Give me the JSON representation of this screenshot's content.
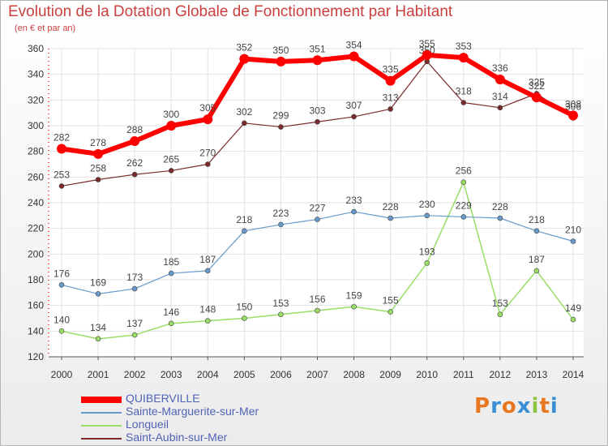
{
  "chart_data": {
    "type": "line",
    "title": "Evolution de la Dotation Globale de Fonctionnement par Habitant",
    "subtitle": "(en € et par an)",
    "x": [
      "2000",
      "2001",
      "2002",
      "2003",
      "2004",
      "2005",
      "2006",
      "2007",
      "2008",
      "2009",
      "2010",
      "2011",
      "2012",
      "2013",
      "2014"
    ],
    "ylim": [
      120,
      360
    ],
    "yticks": [
      120,
      140,
      160,
      180,
      200,
      220,
      240,
      260,
      280,
      300,
      320,
      340,
      360
    ],
    "grid": true,
    "legend_position": "bottom-left",
    "series": [
      {
        "name": "QUIBERVILLE",
        "color": "#ff0000",
        "values": [
          282,
          278,
          288,
          300,
          305,
          352,
          350,
          351,
          354,
          335,
          355,
          353,
          336,
          322,
          308
        ]
      },
      {
        "name": "Sainte-Marguerite-sur-Mer",
        "color": "#6699cc",
        "values": [
          176,
          169,
          173,
          185,
          187,
          218,
          223,
          227,
          233,
          228,
          230,
          229,
          228,
          218,
          210
        ]
      },
      {
        "name": "Longueil",
        "color": "#99dd66",
        "values": [
          140,
          134,
          137,
          146,
          148,
          150,
          153,
          156,
          159,
          155,
          193,
          256,
          153,
          187,
          149
        ]
      },
      {
        "name": "Saint-Aubin-sur-Mer",
        "color": "#7a2a2a",
        "values": [
          253,
          258,
          262,
          265,
          270,
          302,
          299,
          303,
          307,
          313,
          350,
          318,
          314,
          325,
          306
        ]
      }
    ]
  },
  "logo": {
    "letters": [
      "P",
      "r",
      "o",
      "x",
      "i",
      "t",
      "i"
    ],
    "colors": [
      "#e87722",
      "#3a8fd6",
      "#e87722",
      "#3a8fd6",
      "#8cc63f",
      "#e87722",
      "#3a8fd6"
    ]
  }
}
